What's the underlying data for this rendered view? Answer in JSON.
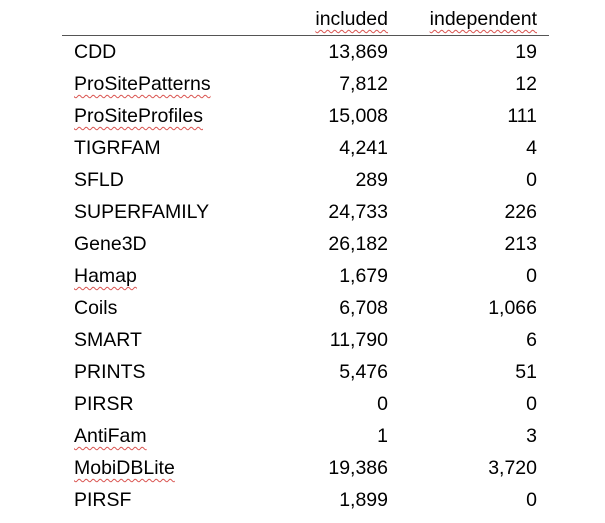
{
  "table": {
    "headers": {
      "name": "",
      "included": "included",
      "independent": "independent"
    },
    "rows": [
      {
        "name": "CDD",
        "included": "13,869",
        "independent": "19",
        "misspelled": false
      },
      {
        "name": "ProSitePatterns",
        "included": "7,812",
        "independent": "12",
        "misspelled": true
      },
      {
        "name": "ProSiteProfiles",
        "included": "15,008",
        "independent": "111",
        "misspelled": true
      },
      {
        "name": "TIGRFAM",
        "included": "4,241",
        "independent": "4",
        "misspelled": false
      },
      {
        "name": "SFLD",
        "included": "289",
        "independent": "0",
        "misspelled": false
      },
      {
        "name": "SUPERFAMILY",
        "included": "24,733",
        "independent": "226",
        "misspelled": false
      },
      {
        "name": "Gene3D",
        "included": "26,182",
        "independent": "213",
        "misspelled": false
      },
      {
        "name": "Hamap",
        "included": "1,679",
        "independent": "0",
        "misspelled": true
      },
      {
        "name": "Coils",
        "included": "6,708",
        "independent": "1,066",
        "misspelled": false
      },
      {
        "name": "SMART",
        "included": "11,790",
        "independent": "6",
        "misspelled": false
      },
      {
        "name": "PRINTS",
        "included": "5,476",
        "independent": "51",
        "misspelled": false
      },
      {
        "name": "PIRSR",
        "included": "0",
        "independent": "0",
        "misspelled": false
      },
      {
        "name": "AntiFam",
        "included": "1",
        "independent": "3",
        "misspelled": true
      },
      {
        "name": "MobiDBLite",
        "included": "19,386",
        "independent": "3,720",
        "misspelled": true
      },
      {
        "name": "PIRSF",
        "included": "1,899",
        "independent": "0",
        "misspelled": false
      }
    ]
  },
  "colors": {
    "text": "#000000",
    "rule": "#555555",
    "spellcheck_underline": "#d9534f"
  }
}
